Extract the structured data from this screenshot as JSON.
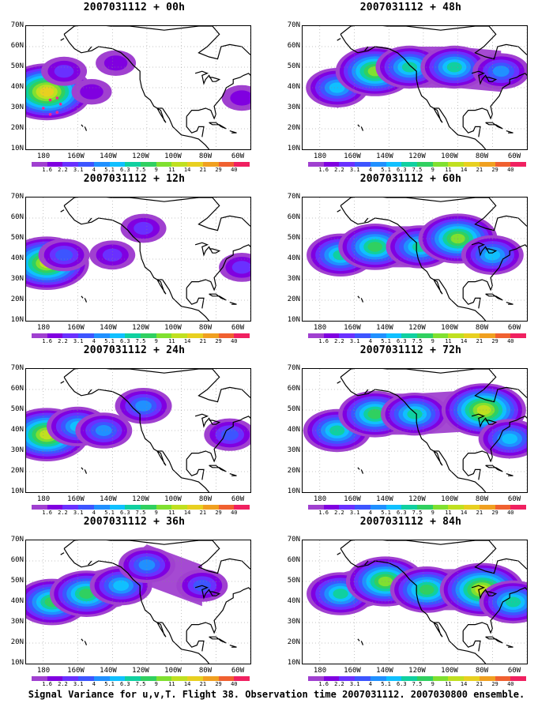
{
  "figure": {
    "footer": "Signal Variance for u,v,T. Flight 38. Observation time 2007031112. 2007030800 ensemble."
  },
  "axes": {
    "lat_labels": [
      "70N",
      "60N",
      "50N",
      "40N",
      "30N",
      "20N",
      "10N"
    ],
    "lon_labels": [
      "180",
      "160W",
      "140W",
      "120W",
      "100W",
      "80W",
      "60W"
    ],
    "lon_range": [
      -190,
      -60
    ],
    "lat_range": [
      10,
      70
    ]
  },
  "colorbar": {
    "labels": [
      "1.6",
      "2.2",
      "3.1",
      "4",
      "5.1",
      "6.3",
      "7.5",
      "9",
      "11",
      "14",
      "21",
      "29",
      "40"
    ],
    "colors": [
      "#a040d0",
      "#8000e0",
      "#6a30ff",
      "#3d55ff",
      "#2090ff",
      "#10c0ff",
      "#10d0a0",
      "#30d060",
      "#80e030",
      "#c0e020",
      "#e8d020",
      "#f0a020",
      "#f06030",
      "#f02060"
    ]
  },
  "chart_data": [
    {
      "type": "heatmap",
      "title": "2007031112 + 00h",
      "blobs": [
        {
          "lon": -178,
          "lat": 38,
          "level": 10
        },
        {
          "lon": -168,
          "lat": 48,
          "level": 2
        },
        {
          "lon": -152,
          "lat": 38,
          "level": 1
        },
        {
          "lon": -138,
          "lat": 52,
          "level": 1
        },
        {
          "lon": -65,
          "lat": 35,
          "level": 1
        }
      ],
      "track": [
        [
          -176,
          34
        ],
        [
          -172,
          35
        ],
        [
          -170,
          32
        ],
        [
          -172,
          28
        ],
        [
          -176,
          27
        ],
        [
          -180,
          30
        ]
      ]
    },
    {
      "type": "heatmap",
      "title": "2007031112 + 12h",
      "blobs": [
        {
          "lon": -178,
          "lat": 38,
          "level": 9
        },
        {
          "lon": -168,
          "lat": 42,
          "level": 3
        },
        {
          "lon": -140,
          "lat": 42,
          "level": 2
        },
        {
          "lon": -122,
          "lat": 55,
          "level": 2
        },
        {
          "lon": -65,
          "lat": 36,
          "level": 2
        }
      ]
    },
    {
      "type": "heatmap",
      "title": "2007031112 + 24h",
      "blobs": [
        {
          "lon": -178,
          "lat": 38,
          "level": 9
        },
        {
          "lon": -160,
          "lat": 42,
          "level": 5
        },
        {
          "lon": -145,
          "lat": 40,
          "level": 4
        },
        {
          "lon": -122,
          "lat": 52,
          "level": 4
        },
        {
          "lon": -72,
          "lat": 38,
          "level": 3
        }
      ]
    },
    {
      "type": "heatmap",
      "title": "2007031112 + 36h",
      "blobs": [
        {
          "lon": -175,
          "lat": 40,
          "level": 7
        },
        {
          "lon": -155,
          "lat": 44,
          "level": 7
        },
        {
          "lon": -135,
          "lat": 48,
          "level": 5
        },
        {
          "lon": -120,
          "lat": 58,
          "level": 4
        },
        {
          "lon": -88,
          "lat": 48,
          "level": 3
        }
      ]
    },
    {
      "type": "heatmap",
      "title": "2007031112 + 48h",
      "blobs": [
        {
          "lon": -170,
          "lat": 40,
          "level": 5
        },
        {
          "lon": -148,
          "lat": 48,
          "level": 8
        },
        {
          "lon": -128,
          "lat": 50,
          "level": 6
        },
        {
          "lon": -102,
          "lat": 50,
          "level": 6
        },
        {
          "lon": -75,
          "lat": 48,
          "level": 4
        }
      ]
    },
    {
      "type": "heatmap",
      "title": "2007031112 + 60h",
      "blobs": [
        {
          "lon": -168,
          "lat": 42,
          "level": 6
        },
        {
          "lon": -148,
          "lat": 46,
          "level": 7
        },
        {
          "lon": -122,
          "lat": 46,
          "level": 6
        },
        {
          "lon": -100,
          "lat": 50,
          "level": 8
        },
        {
          "lon": -80,
          "lat": 42,
          "level": 5
        }
      ]
    },
    {
      "type": "heatmap",
      "title": "2007031112 + 72h",
      "blobs": [
        {
          "lon": -170,
          "lat": 40,
          "level": 6
        },
        {
          "lon": -148,
          "lat": 48,
          "level": 7
        },
        {
          "lon": -125,
          "lat": 48,
          "level": 6
        },
        {
          "lon": -85,
          "lat": 50,
          "level": 9
        },
        {
          "lon": -70,
          "lat": 36,
          "level": 5
        }
      ]
    },
    {
      "type": "heatmap",
      "title": "2007031112 + 84h",
      "blobs": [
        {
          "lon": -168,
          "lat": 44,
          "level": 6
        },
        {
          "lon": -142,
          "lat": 50,
          "level": 8
        },
        {
          "lon": -118,
          "lat": 46,
          "level": 7
        },
        {
          "lon": -86,
          "lat": 46,
          "level": 9
        },
        {
          "lon": -68,
          "lat": 40,
          "level": 6
        }
      ]
    }
  ]
}
